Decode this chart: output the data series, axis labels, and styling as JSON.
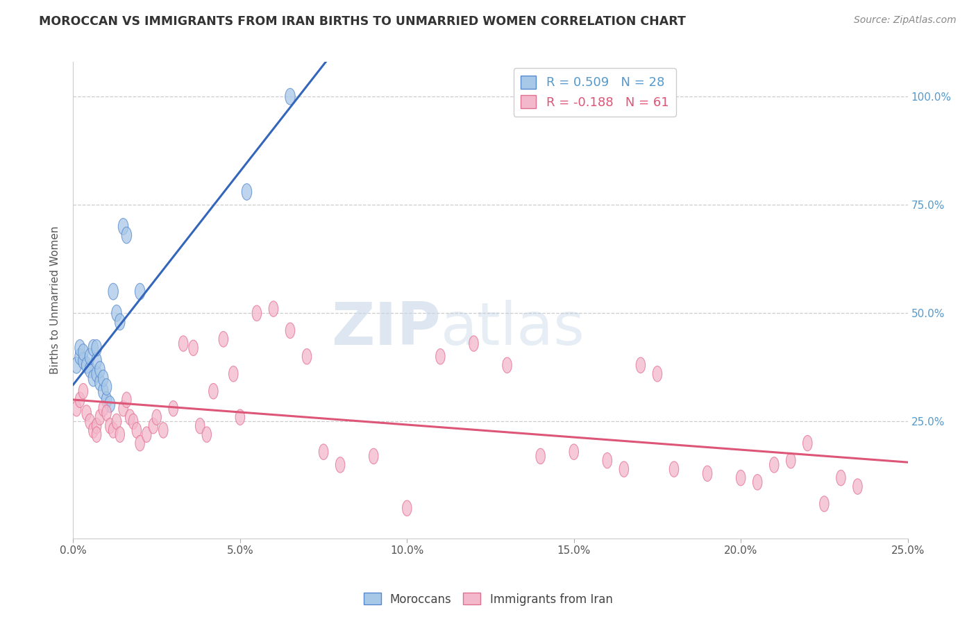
{
  "title": "MOROCCAN VS IMMIGRANTS FROM IRAN BIRTHS TO UNMARRIED WOMEN CORRELATION CHART",
  "source": "Source: ZipAtlas.com",
  "ylabel": "Births to Unmarried Women",
  "yticks": [
    0.0,
    0.25,
    0.5,
    0.75,
    1.0
  ],
  "ytick_labels": [
    "",
    "25.0%",
    "50.0%",
    "75.0%",
    "100.0%"
  ],
  "xlim": [
    0.0,
    0.25
  ],
  "ylim": [
    -0.02,
    1.08
  ],
  "blue_R": 0.509,
  "blue_N": 28,
  "pink_R": -0.188,
  "pink_N": 61,
  "blue_color": "#a8c8e8",
  "pink_color": "#f4b8cc",
  "blue_edge_color": "#5588cc",
  "pink_edge_color": "#e07090",
  "blue_line_color": "#3366bb",
  "pink_line_color": "#dd5577",
  "watermark_zip": "ZIP",
  "watermark_atlas": "atlas",
  "legend_label_blue": "Moroccans",
  "legend_label_pink": "Immigrants from Iran",
  "blue_points_x": [
    0.001,
    0.002,
    0.002,
    0.003,
    0.003,
    0.004,
    0.005,
    0.005,
    0.006,
    0.006,
    0.007,
    0.007,
    0.007,
    0.008,
    0.008,
    0.009,
    0.009,
    0.01,
    0.01,
    0.011,
    0.012,
    0.013,
    0.014,
    0.015,
    0.016,
    0.02,
    0.052,
    0.065
  ],
  "blue_points_y": [
    0.38,
    0.4,
    0.42,
    0.39,
    0.41,
    0.38,
    0.37,
    0.4,
    0.35,
    0.42,
    0.36,
    0.39,
    0.42,
    0.34,
    0.37,
    0.32,
    0.35,
    0.3,
    0.33,
    0.29,
    0.55,
    0.5,
    0.48,
    0.7,
    0.68,
    0.55,
    0.78,
    1.0
  ],
  "pink_points_x": [
    0.001,
    0.002,
    0.003,
    0.004,
    0.005,
    0.006,
    0.007,
    0.007,
    0.008,
    0.009,
    0.01,
    0.011,
    0.012,
    0.013,
    0.014,
    0.015,
    0.016,
    0.017,
    0.018,
    0.019,
    0.02,
    0.022,
    0.024,
    0.025,
    0.027,
    0.03,
    0.033,
    0.036,
    0.038,
    0.04,
    0.042,
    0.045,
    0.048,
    0.05,
    0.055,
    0.06,
    0.065,
    0.07,
    0.075,
    0.08,
    0.09,
    0.1,
    0.11,
    0.12,
    0.13,
    0.14,
    0.15,
    0.16,
    0.165,
    0.17,
    0.175,
    0.18,
    0.19,
    0.2,
    0.205,
    0.21,
    0.215,
    0.22,
    0.225,
    0.23,
    0.235
  ],
  "pink_points_y": [
    0.28,
    0.3,
    0.32,
    0.27,
    0.25,
    0.23,
    0.24,
    0.22,
    0.26,
    0.28,
    0.27,
    0.24,
    0.23,
    0.25,
    0.22,
    0.28,
    0.3,
    0.26,
    0.25,
    0.23,
    0.2,
    0.22,
    0.24,
    0.26,
    0.23,
    0.28,
    0.43,
    0.42,
    0.24,
    0.22,
    0.32,
    0.44,
    0.36,
    0.26,
    0.5,
    0.51,
    0.46,
    0.4,
    0.18,
    0.15,
    0.17,
    0.05,
    0.4,
    0.43,
    0.38,
    0.17,
    0.18,
    0.16,
    0.14,
    0.38,
    0.36,
    0.14,
    0.13,
    0.12,
    0.11,
    0.15,
    0.16,
    0.2,
    0.06,
    0.12,
    0.1
  ]
}
